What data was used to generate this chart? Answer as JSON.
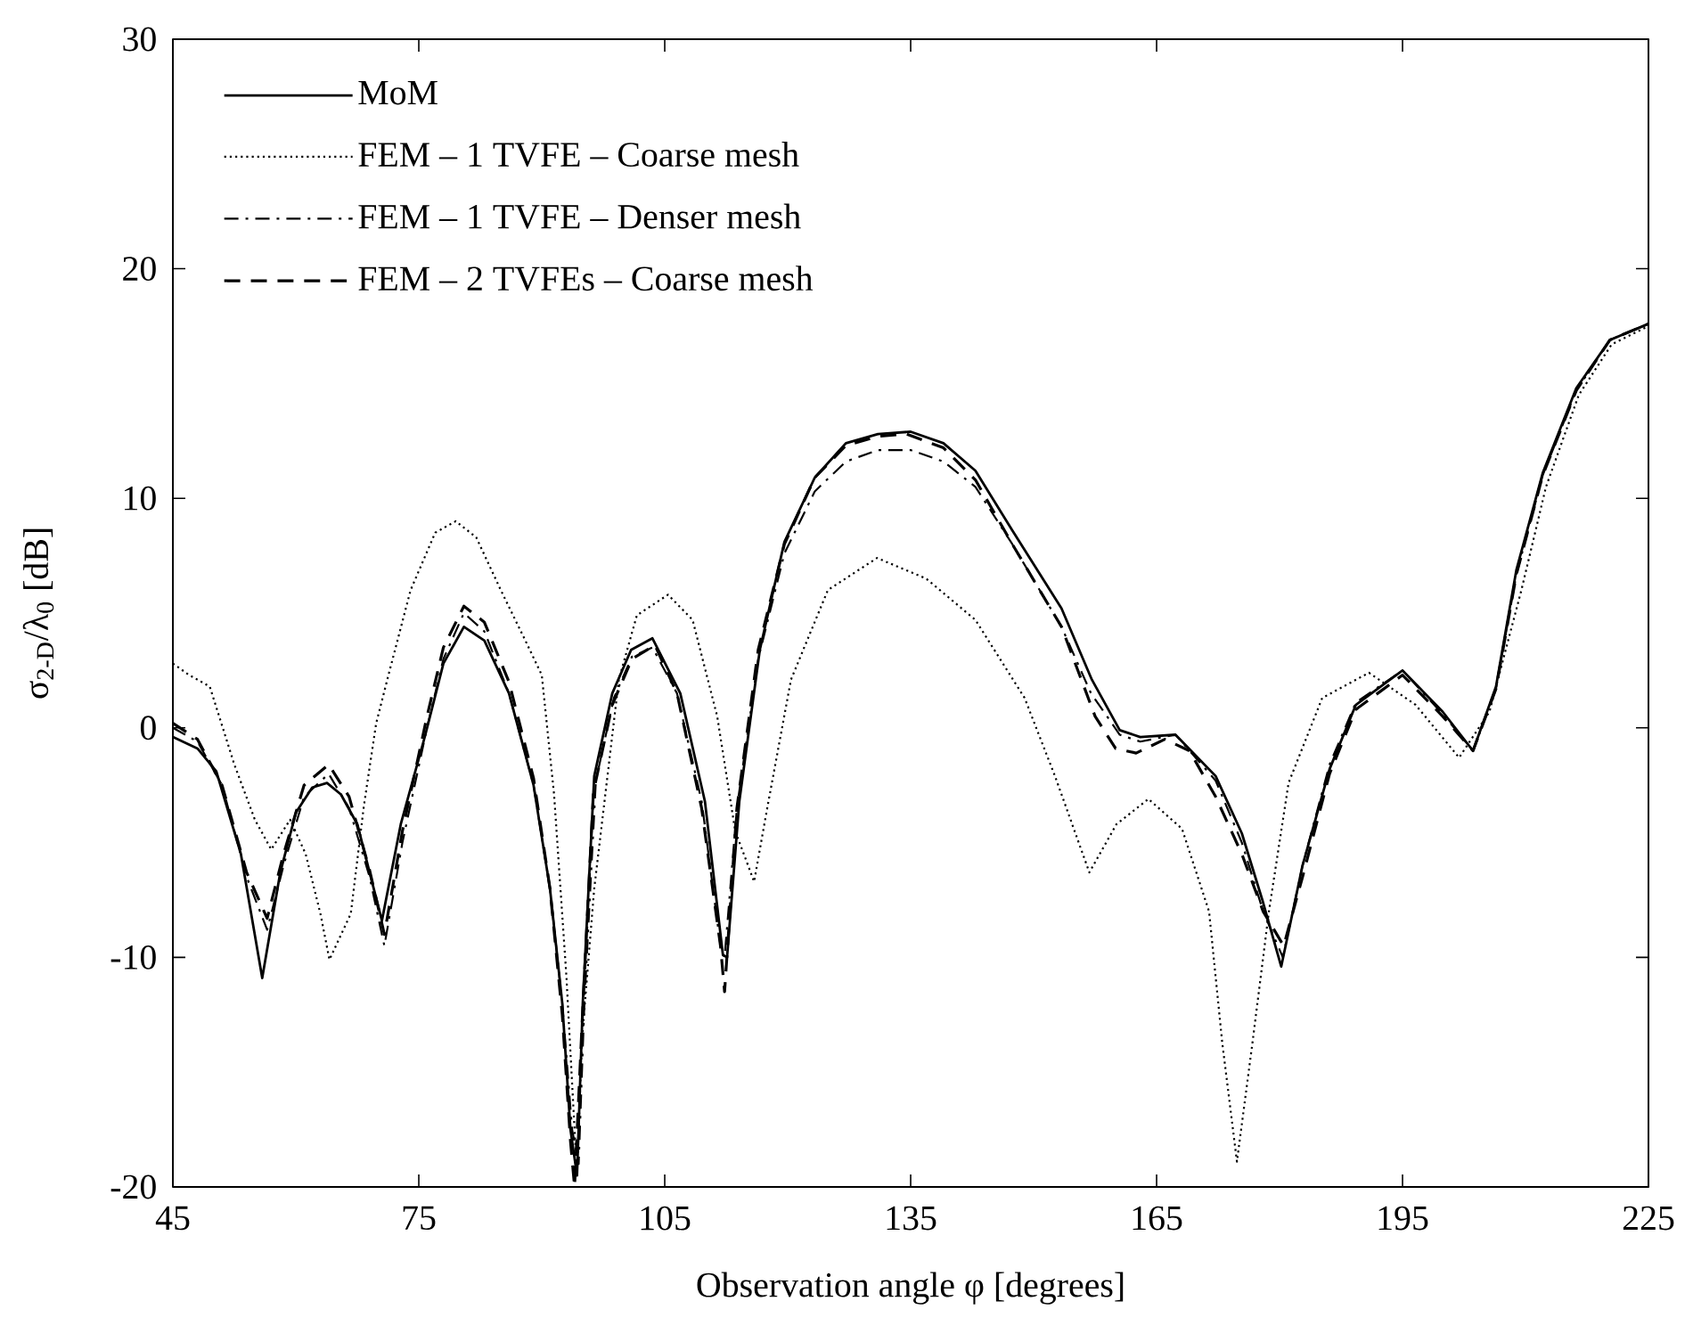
{
  "chart_data": {
    "type": "line",
    "xlabel": "Observation angle φ [degrees]",
    "ylabel": "σ$_{2-D}$/λ$_{0}$ [dB]",
    "xlim": [
      45,
      225
    ],
    "ylim": [
      -20,
      30
    ],
    "xticks": [
      45,
      75,
      105,
      135,
      165,
      195,
      225
    ],
    "yticks": [
      -20,
      -10,
      0,
      10,
      20,
      30
    ],
    "legend": "top left",
    "series": [
      {
        "name": "MoM",
        "color": "#000000",
        "line_style": "solid",
        "x": [
          45,
          48,
          50.3,
          53.3,
          55.9,
          58.1,
          60,
          62,
          63.8,
          65.5,
          67.5,
          69,
          70.5,
          72.8,
          75.8,
          78,
          80.5,
          83,
          86,
          89,
          91,
          92.5,
          93.5,
          94.3,
          95,
          96.4,
          98.6,
          100.9,
          103.5,
          106.9,
          109.9,
          112.1,
          112.6,
          114.1,
          116.6,
          119.6,
          123.3,
          127.1,
          131,
          135,
          139,
          142.9,
          147.4,
          153.4,
          157.1,
          160.5,
          163,
          167.3,
          172.2,
          175.4,
          177.9,
          180.2,
          182.8,
          186.1,
          189.3,
          195,
          199.9,
          203.6,
          206.4,
          208.9,
          212.1,
          216.2,
          220.3,
          225
        ],
        "values": [
          -0.4,
          -0.9,
          -1.9,
          -5.5,
          -10.9,
          -6.3,
          -3.7,
          -2.6,
          -2.4,
          -2.9,
          -4.2,
          -6.3,
          -8.4,
          -4.2,
          -0.3,
          2.8,
          4.4,
          3.8,
          1.5,
          -2.5,
          -7,
          -12,
          -17.5,
          -19.5,
          -12,
          -2.1,
          1.5,
          3.4,
          3.9,
          1.5,
          -3.2,
          -9.9,
          -10,
          -3.2,
          3.4,
          8.1,
          10.9,
          12.4,
          12.8,
          12.9,
          12.4,
          11.2,
          8.6,
          5.2,
          2.1,
          -0.1,
          -0.4,
          -0.3,
          -2.1,
          -4.6,
          -7.5,
          -10.4,
          -6,
          -1.8,
          1,
          2.5,
          0.7,
          -1,
          1.8,
          6.9,
          11.1,
          14.8,
          16.9,
          17.6
        ]
      },
      {
        "name": "FEM – 1 TVFE – Coarse mesh",
        "color": "#000000",
        "line_style": "dotted",
        "x": [
          45,
          47,
          49.5,
          52.5,
          55,
          57,
          59.3,
          61.2,
          63,
          64.1,
          66.7,
          68.3,
          69.8,
          71.3,
          74,
          77,
          79.5,
          82,
          85,
          88,
          90,
          91.5,
          93,
          94.3,
          94.9,
          96.4,
          99.4,
          101.6,
          105.4,
          108.4,
          111.4,
          113.6,
          115.9,
          117.4,
          120.4,
          124.9,
          130.9,
          136.9,
          142.9,
          148.9,
          152.6,
          156.8,
          160.1,
          164,
          168.1,
          171.4,
          173,
          174.8,
          176.7,
          178.7,
          181.1,
          185.2,
          190.9,
          196.6,
          201.9,
          205.6,
          209.5,
          212.5,
          216.5,
          220.5,
          225
        ],
        "values": [
          2.8,
          2.3,
          1.8,
          -1.6,
          -4,
          -5.3,
          -4,
          -5.5,
          -8.1,
          -10.1,
          -8.1,
          -3.4,
          0.2,
          2.3,
          6,
          8.5,
          9,
          8.3,
          6,
          3.8,
          2.3,
          -2.9,
          -10.8,
          -19.5,
          -13.6,
          -7,
          2.1,
          4.9,
          5.8,
          4.7,
          0.5,
          -4.5,
          -6.7,
          -3.7,
          2.1,
          6,
          7.4,
          6.5,
          4.7,
          1.3,
          -2.1,
          -6.3,
          -4.2,
          -3.1,
          -4.4,
          -8,
          -13.7,
          -18.9,
          -13.7,
          -8,
          -2.4,
          1.3,
          2.4,
          1,
          -1.3,
          0.7,
          6,
          10.5,
          14.5,
          16.7,
          17.5
        ]
      },
      {
        "name": "FEM – 1 TVFE – Denser mesh",
        "color": "#000000",
        "line_style": "dashdotted",
        "x": [
          45,
          48,
          51,
          54,
          56.5,
          58.5,
          61,
          64,
          66.5,
          69,
          70.8,
          73,
          76,
          78,
          80.5,
          83,
          86,
          89,
          91,
          92.5,
          93.7,
          94.5,
          95.2,
          96.6,
          98.8,
          101,
          103.5,
          106.5,
          109.5,
          111.8,
          112.3,
          113.8,
          116.4,
          119.6,
          123.3,
          127.1,
          131,
          135,
          139,
          142.9,
          147.4,
          153.4,
          157,
          160.5,
          163,
          167.3,
          172.2,
          175.4,
          178,
          180.4,
          182.8,
          186.1,
          189.3,
          195,
          199.9,
          203.6,
          206.4,
          208.9,
          212.1,
          216.2,
          220.3,
          225
        ],
        "values": [
          0,
          -0.6,
          -2.5,
          -6.5,
          -8.8,
          -6,
          -3,
          -2,
          -3.5,
          -6.5,
          -9.5,
          -5,
          0,
          3,
          5,
          4.2,
          1.5,
          -2.5,
          -7,
          -12,
          -17.5,
          -19,
          -12,
          -2.3,
          1.3,
          3.1,
          3.5,
          1.5,
          -3.2,
          -9.5,
          -10,
          -3.5,
          3,
          7.6,
          10.3,
          11.6,
          12.1,
          12.1,
          11.6,
          10.5,
          8,
          4.4,
          1.5,
          -0.3,
          -0.6,
          -0.3,
          -2.3,
          -5,
          -8,
          -10,
          -6,
          -1.6,
          1.1,
          2.5,
          0.6,
          -1,
          1.7,
          6.7,
          11,
          14.7,
          16.9,
          17.6
        ]
      },
      {
        "name": "FEM – 2 TVFEs – Coarse mesh",
        "color": "#000000",
        "line_style": "dashed",
        "x": [
          45,
          48,
          51,
          54,
          56.5,
          58.5,
          61,
          64,
          66.5,
          69,
          70.8,
          73,
          76,
          78,
          80.5,
          83,
          86,
          89,
          91,
          92.5,
          93.5,
          94,
          94.9,
          96.3,
          98.6,
          101,
          103.8,
          106.5,
          109.5,
          111.8,
          112.3,
          113.8,
          116.4,
          119.6,
          123.3,
          127.1,
          131,
          134.5,
          139,
          142.9,
          147.4,
          153.4,
          157.5,
          160,
          162.5,
          166,
          169,
          172.2,
          175.4,
          178,
          180.5,
          182.8,
          186.1,
          189.3,
          195,
          199.9,
          203.6,
          206.4,
          208.9,
          212.1,
          216.2,
          220.3,
          225
        ],
        "values": [
          0.2,
          -0.5,
          -2.5,
          -6.3,
          -8.3,
          -5.5,
          -2.5,
          -1.6,
          -3,
          -6.2,
          -9,
          -4.5,
          0.5,
          3.5,
          5.3,
          4.6,
          2,
          -2.2,
          -7,
          -12.5,
          -18,
          -20,
          -13,
          -2.8,
          1,
          3,
          3.6,
          1.5,
          -3.5,
          -9.5,
          -11.5,
          -3.5,
          3.4,
          8,
          10.9,
          12.3,
          12.7,
          12.8,
          12.2,
          10.8,
          8,
          4.4,
          0.5,
          -0.9,
          -1.1,
          -0.5,
          -1,
          -3,
          -5.5,
          -8,
          -9.5,
          -6.5,
          -2,
          0.8,
          2.3,
          0.5,
          -1,
          1.7,
          6.7,
          11,
          14.7,
          16.9,
          17.6
        ]
      }
    ]
  }
}
